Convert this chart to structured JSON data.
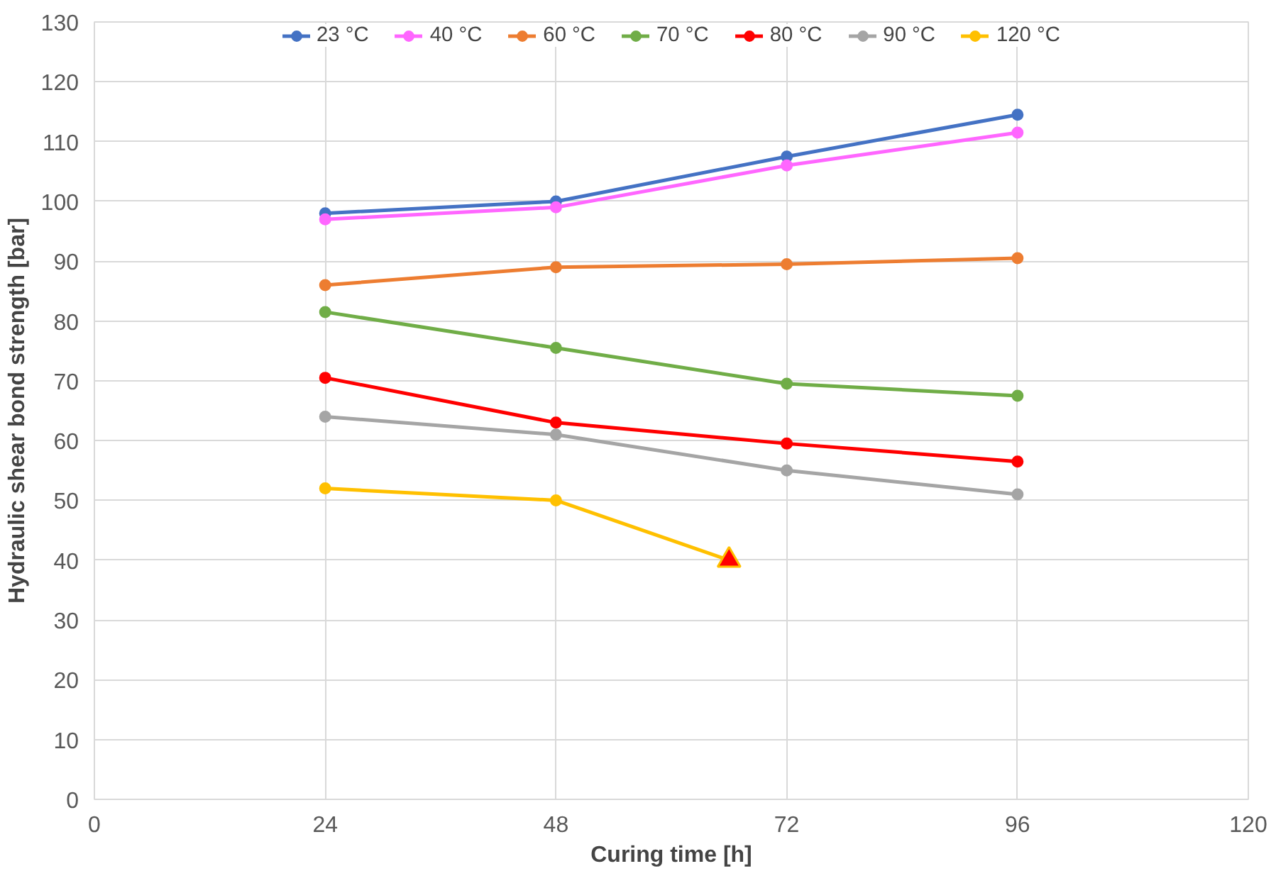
{
  "chart_data": {
    "type": "line",
    "xlabel": "Curing time [h]",
    "ylabel": "Hydraulic shear bond strength [bar]",
    "x": [
      24,
      48,
      72,
      96
    ],
    "series": [
      {
        "name": "23 °C",
        "color": "#4472c4",
        "values": [
          98,
          100,
          107.5,
          114.5
        ]
      },
      {
        "name": "40 °C",
        "color": "#ff66ff",
        "values": [
          97,
          99,
          106,
          111.5
        ]
      },
      {
        "name": "60 °C",
        "color": "#ed7d31",
        "values": [
          86,
          89,
          89.5,
          90.5
        ]
      },
      {
        "name": "70 °C",
        "color": "#70ad47",
        "values": [
          81.5,
          75.5,
          69.5,
          67.5
        ]
      },
      {
        "name": "80 °C",
        "color": "#ff0000",
        "values": [
          70.5,
          63,
          59.5,
          56.5
        ]
      },
      {
        "name": "90 °C",
        "color": "#a5a5a5",
        "values": [
          64,
          61,
          55,
          51
        ]
      },
      {
        "name": "120 °C",
        "color": "#ffc000",
        "x": [
          24,
          48,
          66
        ],
        "values": [
          52.0,
          50.0,
          40.0
        ]
      },
      {
        "type": "scatter",
        "color": "#ff0000",
        "marker": "triangle",
        "x": [
          66
        ],
        "values": [
          40.0
        ]
      }
    ],
    "marker": "circle",
    "line_style": "solid",
    "grid": true,
    "legend": "top",
    "xlim": [
      0,
      120
    ],
    "xticks": [
      0,
      24,
      48,
      72,
      96,
      120
    ],
    "ylim": [
      0,
      130
    ],
    "yticks": [
      0,
      10,
      20,
      30,
      40,
      50,
      60,
      70,
      80,
      90,
      100,
      110,
      120,
      130
    ]
  }
}
